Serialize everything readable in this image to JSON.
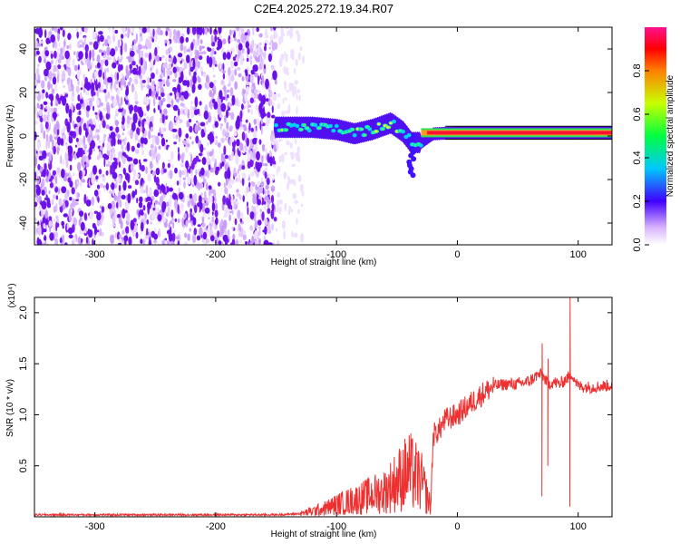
{
  "title": "C2E4.2025.272.19.34.R07",
  "chart_data": [
    {
      "type": "heatmap",
      "xlabel": "Height of straight line (km)",
      "ylabel": "Frequency (Hz)",
      "xlim": [
        -350,
        128
      ],
      "ylim": [
        -50,
        50
      ],
      "xticks": [
        "-300",
        "-200",
        "-100",
        "0",
        "100"
      ],
      "xtick_values": [
        -300,
        -200,
        -100,
        0,
        100
      ],
      "yticks": [
        "-40",
        "-20",
        "0",
        "20",
        "40"
      ],
      "ytick_values": [
        -40,
        -20,
        0,
        20,
        40
      ],
      "colorbar": {
        "label": "Normalized spectral amplitude",
        "range": [
          0,
          1
        ],
        "ticks": [
          "0.0",
          "0.2",
          "0.4",
          "0.6",
          "0.8"
        ],
        "tick_values": [
          0.0,
          0.2,
          0.4,
          0.6,
          0.8
        ],
        "colormap": "rainbow-white"
      },
      "main_trace": [
        {
          "x": -150,
          "f": 4
        },
        {
          "x": -140,
          "f": 4
        },
        {
          "x": -120,
          "f": 4
        },
        {
          "x": -100,
          "f": 3
        },
        {
          "x": -85,
          "f": 1
        },
        {
          "x": -70,
          "f": 3
        },
        {
          "x": -55,
          "f": 6
        },
        {
          "x": -45,
          "f": 2
        },
        {
          "x": -38,
          "f": -3
        },
        {
          "x": -30,
          "f": -3
        },
        {
          "x": -20,
          "f": 1
        },
        {
          "x": 0,
          "f": 1.5
        },
        {
          "x": 50,
          "f": 1.5
        },
        {
          "x": 100,
          "f": 1.5
        },
        {
          "x": 128,
          "f": 1.5
        }
      ],
      "noise_region": [
        -350,
        -150
      ],
      "noise_color": "#7a1cf0"
    },
    {
      "type": "line",
      "xlabel": "Height of straight line (km)",
      "ylabel": "SNR (10 * v/v)",
      "multiplier_label": "(x10⁴)",
      "xlim": [
        -350,
        128
      ],
      "ylim": [
        0,
        2.15
      ],
      "xticks": [
        "-300",
        "-200",
        "-100",
        "0",
        "100"
      ],
      "xtick_values": [
        -300,
        -200,
        -100,
        0,
        100
      ],
      "yticks": [
        "0.5",
        "1.0",
        "1.5",
        "2.0"
      ],
      "ytick_values": [
        0.5,
        1.0,
        1.5,
        2.0
      ],
      "line_color": "#ee3030",
      "series": [
        {
          "x": [
            -350,
            -150,
            -130,
            -110,
            -100,
            -90,
            -80,
            -70,
            -60,
            -50,
            -40,
            -30,
            -22,
            -20,
            -15,
            -10,
            0,
            10,
            20,
            30,
            40,
            50,
            60,
            65,
            70,
            75,
            80,
            85,
            90,
            95,
            100,
            110,
            120,
            128
          ],
          "values": [
            0.02,
            0.02,
            0.03,
            0.08,
            0.12,
            0.15,
            0.18,
            0.22,
            0.25,
            0.35,
            0.45,
            0.35,
            0.1,
            0.8,
            0.85,
            0.95,
            1.0,
            1.1,
            1.2,
            1.28,
            1.3,
            1.3,
            1.33,
            1.38,
            1.4,
            1.3,
            1.32,
            1.3,
            1.35,
            1.4,
            1.28,
            1.27,
            1.28,
            1.29
          ]
        }
      ],
      "spikes": [
        {
          "x": 70,
          "low": 0.2,
          "high": 1.7
        },
        {
          "x": 75,
          "low": 0.5,
          "high": 1.55
        },
        {
          "x": 93,
          "low": 0.1,
          "high": 2.15
        }
      ]
    }
  ]
}
